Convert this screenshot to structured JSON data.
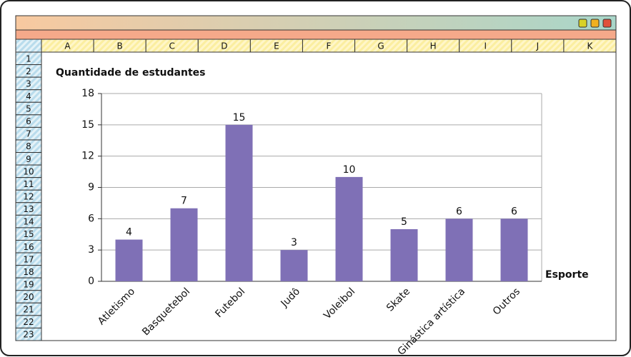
{
  "spreadsheet": {
    "columns": [
      "A",
      "B",
      "C",
      "D",
      "E",
      "F",
      "G",
      "H",
      "I",
      "J",
      "K"
    ],
    "rows": [
      1,
      2,
      3,
      4,
      5,
      6,
      7,
      8,
      9,
      10,
      11,
      12,
      13,
      14,
      15,
      16,
      17,
      18,
      19,
      20,
      21,
      22,
      23
    ]
  },
  "chart_data": {
    "type": "bar",
    "title": "Quantidade de estudantes",
    "x_label": "Esporte",
    "categories": [
      "Atletismo",
      "Basquetebol",
      "Futebol",
      "Judô",
      "Voleibol",
      "Skate",
      "Ginástica artística",
      "Outros"
    ],
    "values": [
      4,
      7,
      15,
      3,
      10,
      5,
      6,
      6
    ],
    "color": "#7f70b6",
    "ylim": [
      0,
      18
    ],
    "yticks": [
      0,
      3,
      6,
      9,
      12,
      15,
      18
    ],
    "grid": true
  }
}
